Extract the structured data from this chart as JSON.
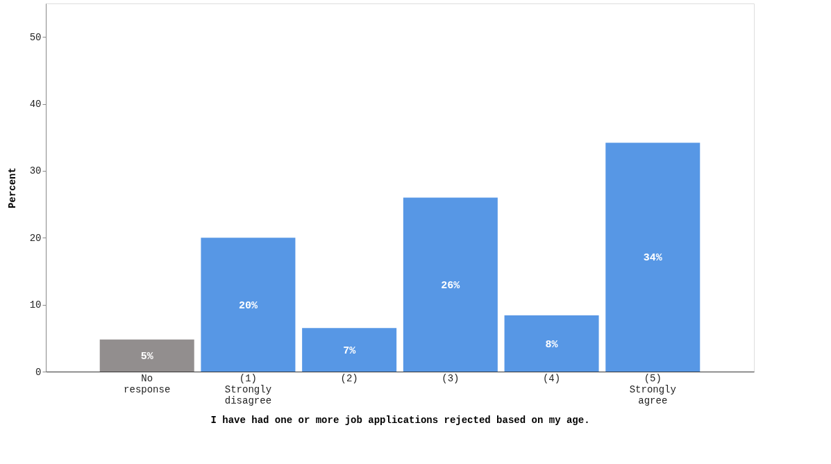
{
  "chart_data": {
    "type": "bar",
    "xlabel": "I have had one or more job applications rejected based on my age.",
    "ylabel": "Percent",
    "categories": [
      "No\nresponse",
      "(1)\nStrongly\ndisagree",
      "(2)",
      "(3)",
      "(4)",
      "(5)\nStrongly\nagree"
    ],
    "values": [
      4.8,
      20,
      6.5,
      26,
      8.4,
      34.2
    ],
    "colors": [
      "#928e8e",
      "#5797e5",
      "#5797e5",
      "#5797e5",
      "#5797e5",
      "#5797e5"
    ],
    "value_labels": [
      "5%",
      "20%",
      "7%",
      "26%",
      "8%",
      "34%"
    ],
    "ylim": [
      0,
      55
    ],
    "yticks": [
      0,
      10,
      20,
      30,
      40,
      50
    ],
    "grid": false
  }
}
